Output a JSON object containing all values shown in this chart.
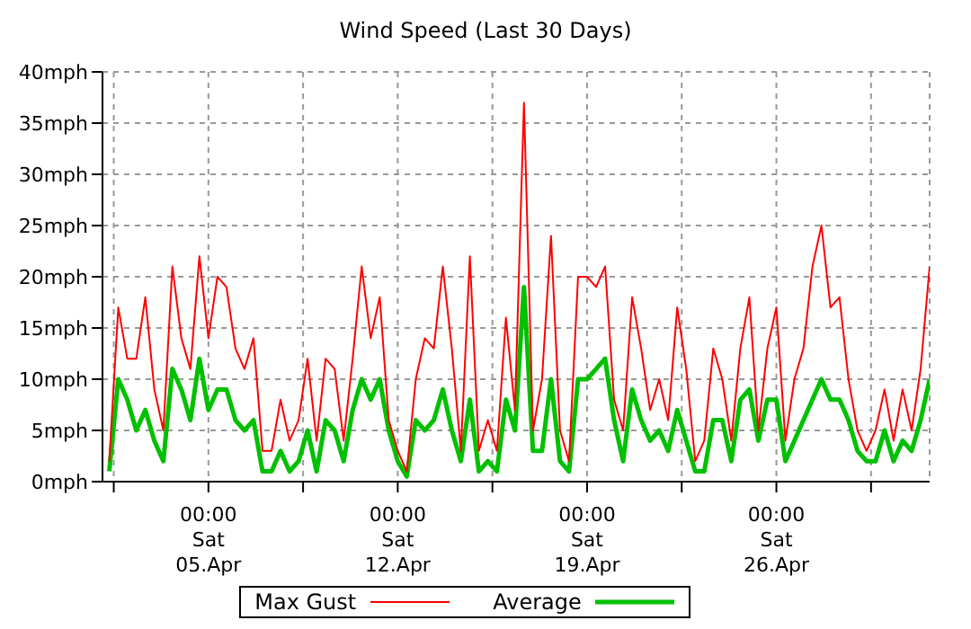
{
  "chart_data": {
    "type": "line",
    "title": "Wind Speed (Last 30 Days)",
    "x": [
      "--04-01T08:00",
      "--04-01T16:00",
      "--04-02T00:00",
      "--04-02T08:00",
      "--04-02T16:00",
      "--04-03T00:00",
      "--04-03T08:00",
      "--04-03T16:00",
      "--04-04T00:00",
      "--04-04T08:00",
      "--04-04T16:00",
      "--04-05T00:00",
      "--04-05T08:00",
      "--04-05T16:00",
      "--04-06T00:00",
      "--04-06T08:00",
      "--04-06T16:00",
      "--04-07T00:00",
      "--04-07T08:00",
      "--04-07T16:00",
      "--04-08T00:00",
      "--04-08T08:00",
      "--04-08T16:00",
      "--04-09T00:00",
      "--04-09T08:00",
      "--04-09T16:00",
      "--04-10T00:00",
      "--04-10T08:00",
      "--04-10T16:00",
      "--04-11T00:00",
      "--04-11T08:00",
      "--04-11T16:00",
      "--04-12T00:00",
      "--04-12T08:00",
      "--04-12T16:00",
      "--04-13T00:00",
      "--04-13T08:00",
      "--04-13T16:00",
      "--04-14T00:00",
      "--04-14T08:00",
      "--04-14T16:00",
      "--04-15T00:00",
      "--04-15T08:00",
      "--04-15T16:00",
      "--04-16T00:00",
      "--04-16T08:00",
      "--04-16T16:00",
      "--04-17T00:00",
      "--04-17T08:00",
      "--04-17T16:00",
      "--04-18T00:00",
      "--04-18T08:00",
      "--04-18T16:00",
      "--04-19T00:00",
      "--04-19T08:00",
      "--04-19T16:00",
      "--04-20T00:00",
      "--04-20T08:00",
      "--04-20T16:00",
      "--04-21T00:00",
      "--04-21T08:00",
      "--04-21T16:00",
      "--04-22T00:00",
      "--04-22T08:00",
      "--04-22T16:00",
      "--04-23T00:00",
      "--04-23T08:00",
      "--04-23T16:00",
      "--04-24T00:00",
      "--04-24T08:00",
      "--04-24T16:00",
      "--04-25T00:00",
      "--04-25T08:00",
      "--04-25T16:00",
      "--04-26T00:00",
      "--04-26T08:00",
      "--04-26T16:00",
      "--04-27T00:00",
      "--04-27T08:00",
      "--04-27T16:00",
      "--04-28T00:00",
      "--04-28T08:00",
      "--04-28T16:00",
      "--04-29T00:00",
      "--04-29T08:00",
      "--04-29T16:00",
      "--04-30T00:00",
      "--04-30T08:00",
      "--04-30T16:00",
      "--05-01T00:00",
      "--05-01T08:00",
      "--05-01T16:00"
    ],
    "series": [
      {
        "name": "Max Gust",
        "color": "#ff0000",
        "values": [
          2,
          17,
          12,
          12,
          18,
          9,
          5,
          21,
          14,
          11,
          22,
          14,
          20,
          19,
          13,
          11,
          14,
          3,
          3,
          8,
          4,
          6,
          12,
          4,
          12,
          11,
          4,
          12,
          21,
          14,
          18,
          6,
          3,
          1,
          10,
          14,
          13,
          21,
          13,
          3,
          22,
          3,
          6,
          3,
          16,
          7,
          37,
          5,
          10,
          24,
          5,
          2,
          20,
          20,
          19,
          21,
          8,
          5,
          18,
          13,
          7,
          10,
          6,
          17,
          11,
          2,
          4,
          13,
          10,
          4,
          13,
          18,
          5,
          13,
          17,
          4,
          10,
          13,
          21,
          25,
          17,
          18,
          10,
          5,
          3,
          5,
          9,
          4,
          9,
          5,
          11,
          21
        ]
      },
      {
        "name": "Average",
        "color": "#00c000",
        "values": [
          1,
          10,
          8,
          5,
          7,
          4,
          2,
          11,
          9,
          6,
          12,
          7,
          9,
          9,
          6,
          5,
          6,
          1,
          1,
          3,
          1,
          2,
          5,
          1,
          6,
          5,
          2,
          7,
          10,
          8,
          10,
          5,
          2,
          0.5,
          6,
          5,
          6,
          9,
          5,
          2,
          8,
          1,
          2,
          1,
          8,
          5,
          19,
          3,
          3,
          10,
          2,
          1,
          10,
          10,
          11,
          12,
          6,
          2,
          9,
          6,
          4,
          5,
          3,
          7,
          4,
          1,
          1,
          6,
          6,
          2,
          8,
          9,
          4,
          8,
          8,
          2,
          4,
          6,
          8,
          10,
          8,
          8,
          6,
          3,
          2,
          2,
          5,
          2,
          4,
          3,
          6,
          10
        ]
      }
    ],
    "xlim": [
      "--04-01T02:00",
      "--05-01T16:00"
    ],
    "xticks": [
      {
        "value": "--04-01T12:00",
        "label": null
      },
      {
        "value": "--04-05T00:00",
        "label": "00:00\nSat\n05.Apr"
      },
      {
        "value": "--04-08T12:00",
        "label": null
      },
      {
        "value": "--04-12T00:00",
        "label": "00:00\nSat\n12.Apr"
      },
      {
        "value": "--04-15T12:00",
        "label": null
      },
      {
        "value": "--04-19T00:00",
        "label": "00:00\nSat\n19.Apr"
      },
      {
        "value": "--04-22T12:00",
        "label": null
      },
      {
        "value": "--04-26T00:00",
        "label": "00:00\nSat\n26.Apr"
      },
      {
        "value": "--04-29T12:00",
        "label": null
      }
    ],
    "ylim": [
      0,
      40
    ],
    "yticks": [
      {
        "value": 0,
        "label": "0mph"
      },
      {
        "value": 5,
        "label": "5mph"
      },
      {
        "value": 10,
        "label": "10mph"
      },
      {
        "value": 15,
        "label": "15mph"
      },
      {
        "value": 20,
        "label": "20mph"
      },
      {
        "value": 25,
        "label": "25mph"
      },
      {
        "value": 30,
        "label": "30mph"
      },
      {
        "value": 35,
        "label": "35mph"
      },
      {
        "value": 40,
        "label": "40mph"
      }
    ],
    "grid": true,
    "legend": "bottom",
    "marker": "none",
    "line_style": "solid"
  }
}
